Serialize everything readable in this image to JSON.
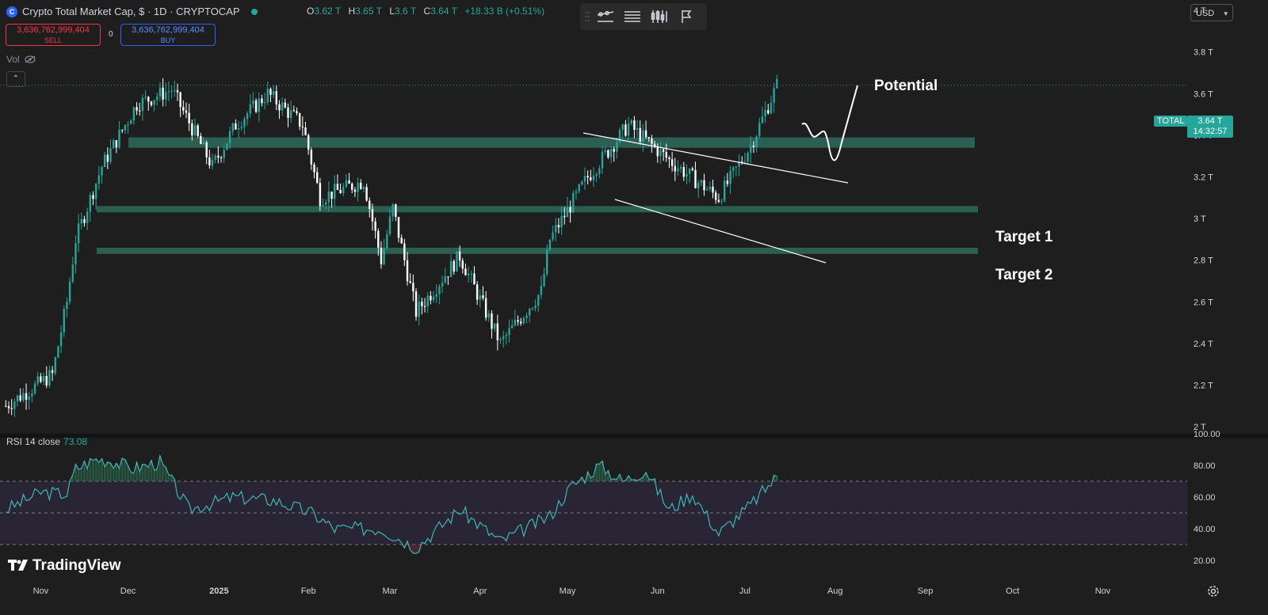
{
  "header": {
    "symbol_title": "Crypto Total Market Cap, $ · 1D · CRYPTOCAP",
    "ohlc": [
      {
        "key": "O",
        "value": "3.62 T"
      },
      {
        "key": "H",
        "value": "3.65 T"
      },
      {
        "key": "L",
        "value": "3.6 T"
      },
      {
        "key": "C",
        "value": "3.64 T"
      }
    ],
    "change": "+18.33 B (+0.51%)"
  },
  "trade": {
    "sell_price": "3,636,762,999,404",
    "sell_label": "SELL",
    "buy_price": "3,636,762,999,404",
    "buy_label": "BUY",
    "spread": "0"
  },
  "vol_label": "Vol",
  "currency": "USD",
  "toolbar_icons": [
    "trendline-tool-icon",
    "horizontal-lines-icon",
    "candles-icon",
    "flag-icon"
  ],
  "annotations": {
    "potential": "Potential",
    "target1": "Target 1",
    "target2": "Target 2"
  },
  "price_scale": {
    "labels": [
      "4 T",
      "3.8 T",
      "3.6 T",
      "3.4 T",
      "3.2 T",
      "3 T",
      "2.8 T",
      "2.6 T",
      "2.4 T",
      "2.2 T",
      "2 T"
    ],
    "total_tag": "TOTAL",
    "last_price": "3.64 T",
    "countdown": "14:32:57"
  },
  "rsi": {
    "label": "RSI 14 close",
    "value": "73.08",
    "scale": [
      "100.00",
      "80.00",
      "60.00",
      "40.00",
      "20.00"
    ]
  },
  "time_axis": [
    "Nov",
    "Dec",
    "2025",
    "Feb",
    "Mar",
    "Apr",
    "May",
    "Jun",
    "Jul",
    "Aug",
    "Sep",
    "Oct",
    "Nov"
  ],
  "branding": "TradingView",
  "colors": {
    "up": "#26a69a",
    "down": "#ffffff",
    "zone": "#2e6b5c",
    "rsi": "#3fb6b6",
    "accent": "#2962ff"
  },
  "chart_data": [
    {
      "type": "candlestick",
      "title": "Crypto Total Market Cap, $ · 1D · CRYPTOCAP",
      "ylabel": "",
      "ylim": [
        1.97,
        4.05
      ],
      "y_unit": "T USD",
      "close_path": [
        {
          "x": "2024-10-20",
          "y": 2.1
        },
        {
          "x": "2024-11-05",
          "y": 2.25
        },
        {
          "x": "2024-11-10",
          "y": 2.6
        },
        {
          "x": "2024-11-13",
          "y": 2.9
        },
        {
          "x": "2024-11-22",
          "y": 3.25
        },
        {
          "x": "2024-12-04",
          "y": 3.55
        },
        {
          "x": "2024-12-16",
          "y": 3.62
        },
        {
          "x": "2024-12-30",
          "y": 3.25
        },
        {
          "x": "2025-01-07",
          "y": 3.45
        },
        {
          "x": "2025-01-18",
          "y": 3.6
        },
        {
          "x": "2025-01-30",
          "y": 3.45
        },
        {
          "x": "2025-02-05",
          "y": 3.1
        },
        {
          "x": "2025-02-20",
          "y": 3.18
        },
        {
          "x": "2025-02-26",
          "y": 2.8
        },
        {
          "x": "2025-03-02",
          "y": 3.05
        },
        {
          "x": "2025-03-10",
          "y": 2.55
        },
        {
          "x": "2025-03-25",
          "y": 2.82
        },
        {
          "x": "2025-04-08",
          "y": 2.4
        },
        {
          "x": "2025-04-22",
          "y": 2.65
        },
        {
          "x": "2025-04-25",
          "y": 2.9
        },
        {
          "x": "2025-05-08",
          "y": 3.2
        },
        {
          "x": "2025-05-22",
          "y": 3.45
        },
        {
          "x": "2025-06-05",
          "y": 3.28
        },
        {
          "x": "2025-06-22",
          "y": 3.1
        },
        {
          "x": "2025-07-03",
          "y": 3.35
        },
        {
          "x": "2025-07-12",
          "y": 3.64
        }
      ],
      "horizontal_zones": [
        {
          "y_from": 3.34,
          "y_to": 3.39,
          "name": ""
        },
        {
          "y_from": 3.03,
          "y_to": 3.06,
          "name": "Target 1"
        },
        {
          "y_from": 2.83,
          "y_to": 2.86,
          "name": "Target 2"
        }
      ],
      "last_price": 3.64
    },
    {
      "type": "line",
      "title": "RSI 14 close",
      "ylim": [
        20,
        100
      ],
      "guide_levels": [
        70,
        50,
        30
      ],
      "series": [
        {
          "name": "RSI 14 close",
          "points": [
            {
              "x": "2024-10-20",
              "y": 52
            },
            {
              "x": "2024-11-01",
              "y": 63
            },
            {
              "x": "2024-11-10",
              "y": 62
            },
            {
              "x": "2024-11-13",
              "y": 78
            },
            {
              "x": "2024-11-20",
              "y": 84
            },
            {
              "x": "2024-11-25",
              "y": 83
            },
            {
              "x": "2024-12-03",
              "y": 78
            },
            {
              "x": "2024-12-12",
              "y": 82
            },
            {
              "x": "2024-12-22",
              "y": 52
            },
            {
              "x": "2025-01-06",
              "y": 60
            },
            {
              "x": "2025-01-20",
              "y": 58
            },
            {
              "x": "2025-02-02",
              "y": 50
            },
            {
              "x": "2025-02-10",
              "y": 40
            },
            {
              "x": "2025-02-26",
              "y": 40
            },
            {
              "x": "2025-03-10",
              "y": 28
            },
            {
              "x": "2025-03-25",
              "y": 52
            },
            {
              "x": "2025-04-08",
              "y": 32
            },
            {
              "x": "2025-04-25",
              "y": 48
            },
            {
              "x": "2025-05-02",
              "y": 66
            },
            {
              "x": "2025-05-12",
              "y": 80
            },
            {
              "x": "2025-05-20",
              "y": 70
            },
            {
              "x": "2025-05-28",
              "y": 77
            },
            {
              "x": "2025-06-05",
              "y": 52
            },
            {
              "x": "2025-06-13",
              "y": 62
            },
            {
              "x": "2025-06-22",
              "y": 37
            },
            {
              "x": "2025-07-03",
              "y": 55
            },
            {
              "x": "2025-07-12",
              "y": 73.08
            }
          ]
        }
      ]
    }
  ]
}
